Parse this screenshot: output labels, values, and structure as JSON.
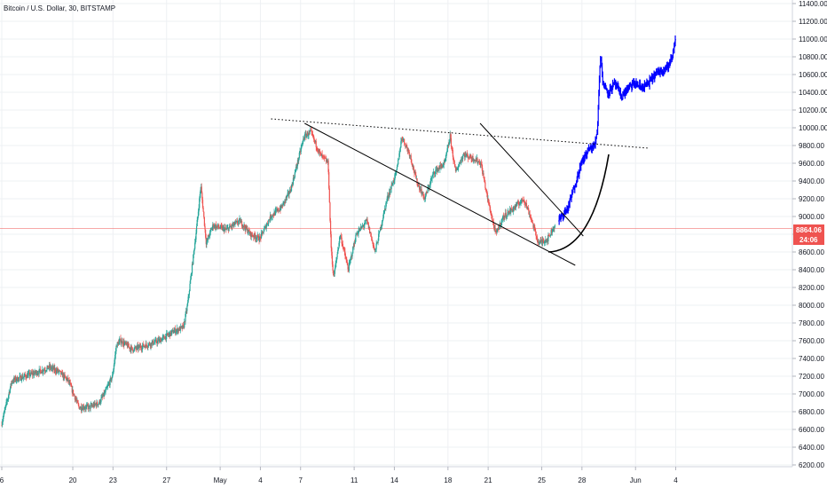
{
  "header": {
    "title": "Bitcoin / U.S. Dollar, 30, BITSTAMP"
  },
  "price_badge": {
    "price": "8864.06",
    "countdown": "24:06"
  },
  "colors": {
    "up": "#26a69a",
    "down": "#ef5350",
    "projection": "#0000ff",
    "price_line": "#ef5350",
    "grid": "#eef0f3",
    "trendline": "#000000"
  },
  "chart_data": {
    "type": "candlestick",
    "ylim": [
      6150,
      11450
    ],
    "y_ticks": [
      "6200.00",
      "6400.00",
      "6600.00",
      "6800.00",
      "7000.00",
      "7200.00",
      "7400.00",
      "7600.00",
      "7800.00",
      "8000.00",
      "8200.00",
      "8400.00",
      "8600.00",
      "8800.00",
      "9000.00",
      "9200.00",
      "9400.00",
      "9600.00",
      "9800.00",
      "10000.00",
      "10200.00",
      "10400.00",
      "10600.00",
      "10800.00",
      "11000.00",
      "11200.00",
      "11400.00"
    ],
    "x_ticks": [
      {
        "label": "6",
        "day": -0.3
      },
      {
        "label": "20",
        "day": 5
      },
      {
        "label": "23",
        "day": 8
      },
      {
        "label": "27",
        "day": 12
      },
      {
        "label": "May",
        "day": 16
      },
      {
        "label": "4",
        "day": 19
      },
      {
        "label": "7",
        "day": 22
      },
      {
        "label": "11",
        "day": 26
      },
      {
        "label": "14",
        "day": 29
      },
      {
        "label": "18",
        "day": 33
      },
      {
        "label": "21",
        "day": 36
      },
      {
        "label": "25",
        "day": 40
      },
      {
        "label": "28",
        "day": 43
      },
      {
        "label": "Jun",
        "day": 47
      },
      {
        "label": "4",
        "day": 50
      }
    ],
    "price_path": [
      [
        -0.3,
        6650
      ],
      [
        0.5,
        7150
      ],
      [
        1.5,
        7200
      ],
      [
        2.5,
        7250
      ],
      [
        3.3,
        7300
      ],
      [
        4,
        7250
      ],
      [
        4.7,
        7150
      ],
      [
        5.5,
        6850
      ],
      [
        6.3,
        6850
      ],
      [
        7,
        6900
      ],
      [
        7.4,
        7000
      ],
      [
        8,
        7200
      ],
      [
        8.3,
        7550
      ],
      [
        8.6,
        7600
      ],
      [
        9.5,
        7500
      ],
      [
        10.5,
        7550
      ],
      [
        11.5,
        7600
      ],
      [
        12.5,
        7700
      ],
      [
        13.3,
        7750
      ],
      [
        13.6,
        8000
      ],
      [
        14,
        8500
      ],
      [
        14.3,
        8900
      ],
      [
        14.6,
        9350
      ],
      [
        15,
        8700
      ],
      [
        15.5,
        8900
      ],
      [
        16.5,
        8850
      ],
      [
        17.5,
        8950
      ],
      [
        18.3,
        8800
      ],
      [
        19,
        8750
      ],
      [
        19.8,
        9000
      ],
      [
        20.6,
        9100
      ],
      [
        21.3,
        9300
      ],
      [
        21.8,
        9600
      ],
      [
        22.3,
        9900
      ],
      [
        22.8,
        9950
      ],
      [
        23.5,
        9700
      ],
      [
        24.1,
        9600
      ],
      [
        24.3,
        8700
      ],
      [
        24.5,
        8300
      ],
      [
        25,
        8800
      ],
      [
        25.6,
        8400
      ],
      [
        26.2,
        8800
      ],
      [
        27,
        8950
      ],
      [
        27.6,
        8600
      ],
      [
        28.5,
        9200
      ],
      [
        29.2,
        9500
      ],
      [
        29.6,
        9900
      ],
      [
        30.2,
        9700
      ],
      [
        30.7,
        9400
      ],
      [
        31.3,
        9200
      ],
      [
        32,
        9500
      ],
      [
        32.8,
        9600
      ],
      [
        33.2,
        9900
      ],
      [
        33.6,
        9500
      ],
      [
        34.2,
        9700
      ],
      [
        35,
        9650
      ],
      [
        35.5,
        9600
      ],
      [
        36,
        9200
      ],
      [
        36.6,
        8800
      ],
      [
        37.2,
        9000
      ],
      [
        38,
        9100
      ],
      [
        38.7,
        9200
      ],
      [
        39.2,
        9000
      ],
      [
        39.8,
        8700
      ],
      [
        40.5,
        8750
      ],
      [
        41,
        8900
      ]
    ],
    "projection_path": [
      [
        41.3,
        8950
      ],
      [
        42,
        9100
      ],
      [
        42.5,
        9350
      ],
      [
        43,
        9600
      ],
      [
        43.5,
        9750
      ],
      [
        44,
        9800
      ],
      [
        44.2,
        10000
      ],
      [
        44.35,
        10600
      ],
      [
        44.45,
        10850
      ],
      [
        44.6,
        10500
      ],
      [
        45,
        10400
      ],
      [
        45.5,
        10500
      ],
      [
        46,
        10350
      ],
      [
        46.5,
        10450
      ],
      [
        47,
        10500
      ],
      [
        47.5,
        10450
      ],
      [
        48,
        10500
      ],
      [
        48.5,
        10600
      ],
      [
        49,
        10650
      ],
      [
        49.5,
        10700
      ],
      [
        49.8,
        10800
      ],
      [
        50,
        11000
      ]
    ],
    "current_price": 8864.06,
    "trendlines": [
      {
        "style": "dotted",
        "from": [
          19.8,
          10100
        ],
        "to": [
          48,
          9770
        ]
      },
      {
        "style": "solid",
        "from": [
          22.3,
          10050
        ],
        "to": [
          42.5,
          8450
        ]
      },
      {
        "style": "solid",
        "from": [
          35.4,
          10050
        ],
        "to": [
          43.1,
          8780
        ]
      }
    ],
    "curve": {
      "from": [
        40.5,
        8600
      ],
      "control": [
        43.8,
        8620
      ],
      "to": [
        45,
        9700
      ]
    }
  }
}
